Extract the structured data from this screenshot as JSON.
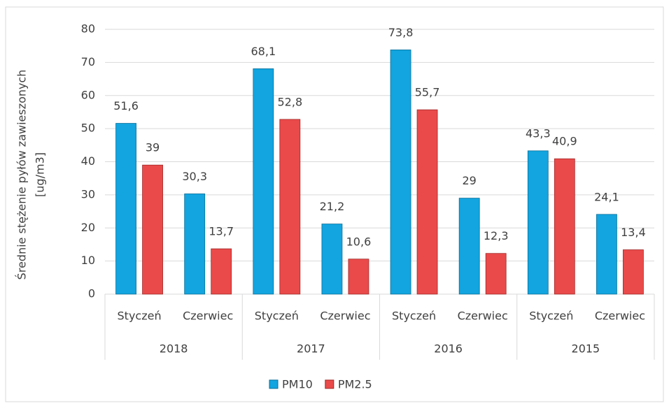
{
  "chart_data": {
    "type": "bar",
    "ylabel": [
      "Średnie stężenie pyłów zawieszonych",
      "[ug/m3]"
    ],
    "categories": [
      "Styczeń",
      "Czerwiec",
      "Styczeń",
      "Czerwiec",
      "Styczeń",
      "Czerwiec",
      "Styczeń",
      "Czerwiec"
    ],
    "category_groups": [
      "2018",
      "2017",
      "2016",
      "2015"
    ],
    "series": [
      {
        "name": "PM10",
        "color": "#12a5e0",
        "values": [
          51.6,
          30.3,
          68.1,
          21.2,
          73.8,
          29,
          43.3,
          24.1
        ],
        "value_labels": [
          "51,6",
          "30,3",
          "68,1",
          "21,2",
          "73,8",
          "29",
          "43,3",
          "24,1"
        ]
      },
      {
        "name": "PM2.5",
        "color": "#ea4a4a",
        "values": [
          39,
          13.7,
          52.8,
          10.6,
          55.7,
          12.3,
          40.9,
          13.4
        ],
        "value_labels": [
          "39",
          "13,7",
          "52,8",
          "10,6",
          "55,7",
          "12,3",
          "40,9",
          "13,4"
        ]
      }
    ],
    "ylim": [
      0,
      80
    ],
    "yticks": [
      0,
      10,
      20,
      30,
      40,
      50,
      60,
      70,
      80
    ],
    "grid": true,
    "legend": "bottom"
  }
}
